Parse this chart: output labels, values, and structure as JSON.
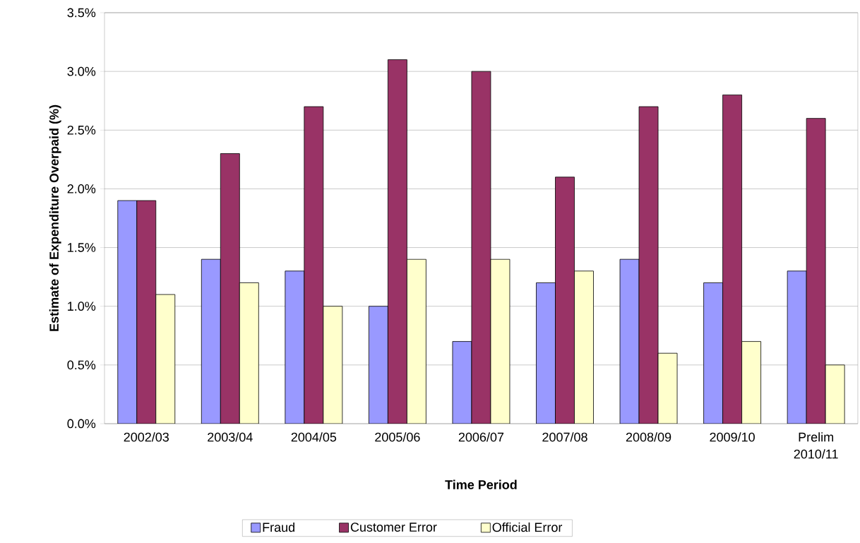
{
  "chart_data": {
    "type": "bar",
    "xlabel": "Time Period",
    "ylabel": "Estimate of Expenditure Overpaid (%)",
    "categories": [
      "2002/03",
      "2003/04",
      "2004/05",
      "2005/06",
      "2006/07",
      "2007/08",
      "2008/09",
      "2009/10",
      "Prelim 2010/11"
    ],
    "series": [
      {
        "name": "Fraud",
        "color": "#9999ff",
        "values": [
          1.9,
          1.4,
          1.3,
          1.0,
          0.7,
          1.2,
          1.4,
          1.2,
          1.3
        ]
      },
      {
        "name": "Customer Error",
        "color": "#993366",
        "values": [
          1.9,
          2.3,
          2.7,
          3.1,
          3.0,
          2.1,
          2.7,
          2.8,
          2.6
        ]
      },
      {
        "name": "Official Error",
        "color": "#ffffcc",
        "values": [
          1.1,
          1.2,
          1.0,
          1.4,
          1.4,
          1.3,
          0.6,
          0.7,
          0.5
        ]
      }
    ],
    "ylim": [
      0,
      3.5
    ],
    "yticks": [
      {
        "value": 0,
        "label": "0.0%"
      },
      {
        "value": 0.5,
        "label": "0.5%"
      },
      {
        "value": 1,
        "label": "1.0%"
      },
      {
        "value": 1.5,
        "label": "1.5%"
      },
      {
        "value": 2,
        "label": "2.0%"
      },
      {
        "value": 2.5,
        "label": "2.5%"
      },
      {
        "value": 3,
        "label": "3.0%"
      },
      {
        "value": 3.5,
        "label": "3.5%"
      }
    ],
    "grid": "y",
    "legend": "bottom"
  }
}
